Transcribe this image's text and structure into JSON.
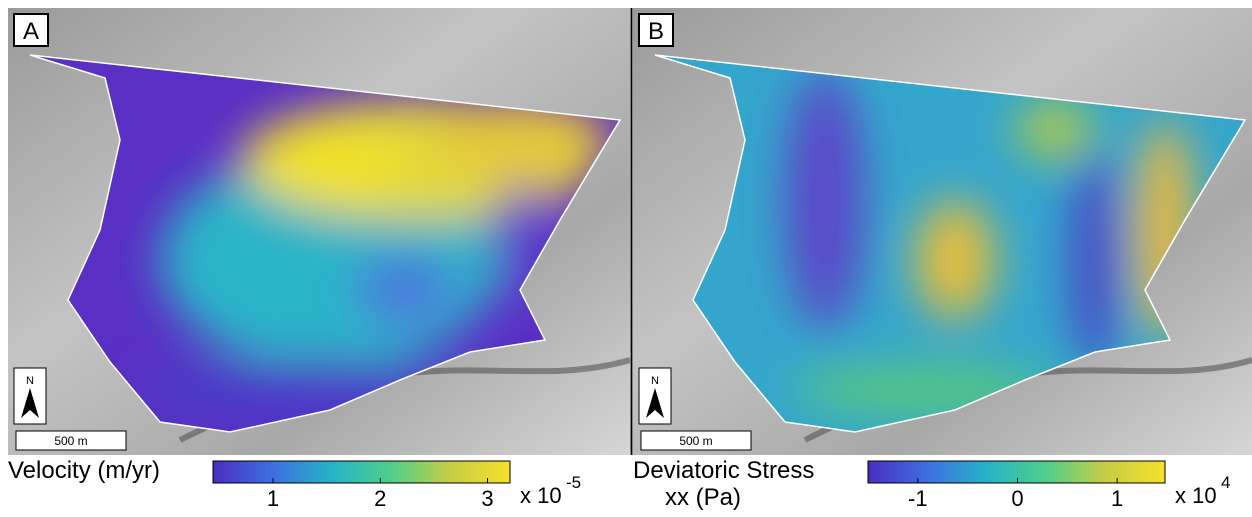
{
  "panels": [
    {
      "label": "A",
      "scale_label": "500 m",
      "north": "N",
      "colorbar": {
        "title": [
          "Velocity (m/yr)"
        ],
        "lim": [
          0.44,
          3.21
        ],
        "ticks": [
          1,
          2,
          3
        ],
        "multiplier": "x 10",
        "exponent": "-5",
        "colormap": [
          "#4a2ec0",
          "#3d6fe0",
          "#26b3c8",
          "#4fcf8a",
          "#c7cd45",
          "#f5e12a"
        ]
      }
    },
    {
      "label": "B",
      "scale_label": "500 m",
      "north": "N",
      "colorbar": {
        "title": [
          "Deviatoric Stress",
          "xx (Pa)"
        ],
        "lim": [
          -1.5,
          1.48
        ],
        "ticks": [
          -1,
          0,
          1
        ],
        "multiplier": "x 10",
        "exponent": "4",
        "colormap": [
          "#4a2ec0",
          "#3d6fe0",
          "#26b3c8",
          "#4fcf8a",
          "#c7cd45",
          "#f5e12a"
        ]
      }
    }
  ]
}
